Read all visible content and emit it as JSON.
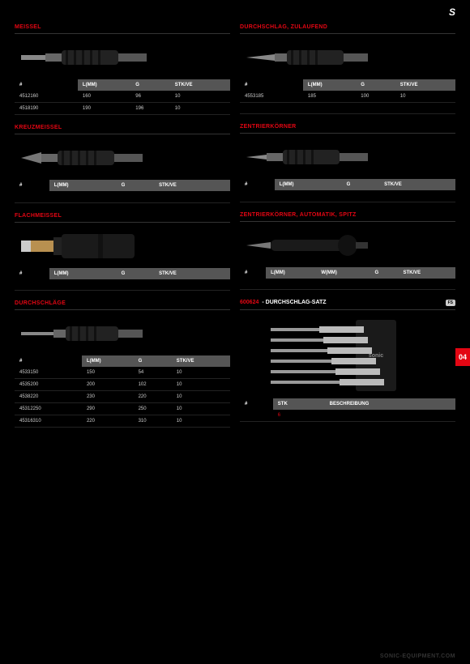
{
  "logo": "S",
  "side_tab": "04",
  "footer": "SONIC-EQUIPMENT.COM",
  "left": [
    {
      "title": "MEISSEL",
      "tool": "chisel-flat",
      "headers": [
        "#",
        "L(MM)",
        "G",
        "STK/VE"
      ],
      "rows": [
        [
          "4512160",
          "160",
          "96",
          "10"
        ],
        [
          "4518190",
          "190",
          "196",
          "10"
        ]
      ]
    },
    {
      "title": "KREUZMEISSEL",
      "tool": "chisel-cross",
      "headers": [
        "#",
        "L(MM)",
        "G",
        "STK/VE"
      ],
      "rows": [
        [
          "",
          "",
          "",
          ""
        ]
      ]
    },
    {
      "title": "FLACHMEISSEL",
      "tool": "chisel-wide",
      "headers": [
        "#",
        "L(MM)",
        "G",
        "STK/VE"
      ],
      "rows": [
        [
          "",
          "",
          "",
          ""
        ]
      ]
    },
    {
      "title": "DURCHSCHLÄGE",
      "tool": "punch-thin",
      "headers": [
        "#",
        "L(MM)",
        "G",
        "STK/VE"
      ],
      "rows": [
        [
          "4533150",
          "150",
          "54",
          "10"
        ],
        [
          "4535200",
          "200",
          "102",
          "10"
        ],
        [
          "4538220",
          "230",
          "220",
          "10"
        ],
        [
          "45312250",
          "290",
          "250",
          "10"
        ],
        [
          "45316310",
          "220",
          "310",
          "10"
        ]
      ]
    }
  ],
  "right": [
    {
      "title": "DURCHSCHLAG, ZULAUFEND",
      "tool": "punch-taper",
      "headers": [
        "#",
        "L(MM)",
        "G",
        "STK/VE"
      ],
      "rows": [
        [
          "4553185",
          "185",
          "100",
          "10"
        ],
        [
          "",
          "",
          "",
          ""
        ]
      ]
    },
    {
      "title": "ZENTRIERKÖRNER",
      "tool": "center-punch",
      "headers": [
        "#",
        "L(MM)",
        "G",
        "STK/VE"
      ],
      "rows": [
        [
          "",
          "",
          "",
          ""
        ]
      ]
    },
    {
      "title": "ZENTRIERKÖRNER, AUTOMATIK, SPITZ",
      "tool": "auto-punch",
      "headers": [
        "#",
        "L(MM)",
        "W(MM)",
        "G",
        "STK/VE"
      ],
      "rows": [
        [
          "",
          "",
          "",
          "",
          ""
        ]
      ]
    },
    {
      "code": "600624",
      "label": "DURCHSCHLAG-SATZ",
      "badge": "FS",
      "set": true,
      "headers": [
        "#",
        "STK",
        "BESCHREIBUNG"
      ],
      "rows": [
        [
          "",
          "6",
          ""
        ]
      ],
      "red_col": 1
    }
  ]
}
